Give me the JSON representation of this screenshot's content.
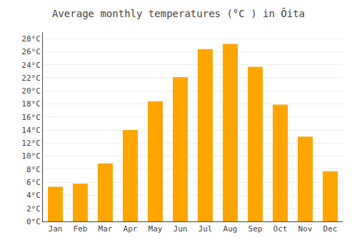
{
  "chart_data": {
    "type": "bar",
    "title": "Average monthly temperatures (°C ) in Ōita",
    "categories": [
      "Jan",
      "Feb",
      "Mar",
      "Apr",
      "May",
      "Jun",
      "Jul",
      "Aug",
      "Sep",
      "Oct",
      "Nov",
      "Dec"
    ],
    "values": [
      5.3,
      5.8,
      8.9,
      14.0,
      18.4,
      22.1,
      26.4,
      27.2,
      23.7,
      17.9,
      13.0,
      7.7
    ],
    "color": "#FFA500",
    "ylim": [
      0,
      29
    ],
    "yticks": [
      {
        "value": 0,
        "label": "0°C"
      },
      {
        "value": 2,
        "label": "2°C"
      },
      {
        "value": 4,
        "label": "4°C"
      },
      {
        "value": 6,
        "label": "6°C"
      },
      {
        "value": 8,
        "label": "8°C"
      },
      {
        "value": 10,
        "label": "10°C"
      },
      {
        "value": 12,
        "label": "12°C"
      },
      {
        "value": 14,
        "label": "14°C"
      },
      {
        "value": 16,
        "label": "16°C"
      },
      {
        "value": 18,
        "label": "18°C"
      },
      {
        "value": 20,
        "label": "20°C"
      },
      {
        "value": 22,
        "label": "22°C"
      },
      {
        "value": 24,
        "label": "24°C"
      },
      {
        "value": 26,
        "label": "26°C"
      },
      {
        "value": 28,
        "label": "28°C"
      }
    ],
    "grid": true
  }
}
